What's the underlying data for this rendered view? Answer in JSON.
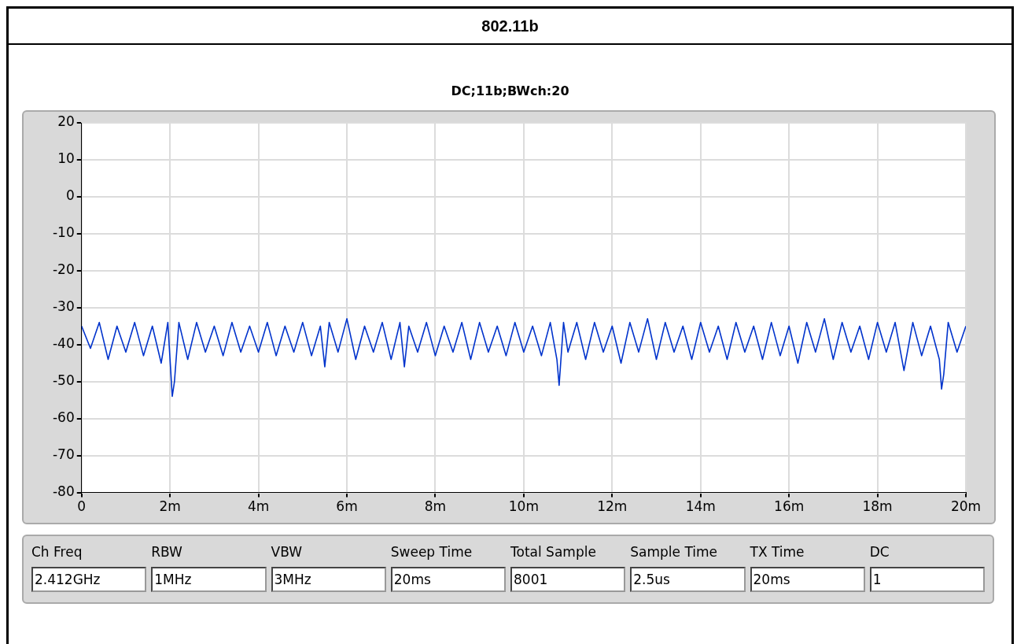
{
  "chart_data": {
    "type": "line",
    "title": "802.11b",
    "subtitle": "DC;11b;BWch:20",
    "x": [
      0,
      0.2,
      0.4,
      0.6,
      0.8,
      1,
      1.2,
      1.4,
      1.6,
      1.8,
      1.95,
      2.05,
      2.1,
      2.2,
      2.4,
      2.6,
      2.8,
      3,
      3.2,
      3.4,
      3.6,
      3.8,
      4,
      4.2,
      4.4,
      4.6,
      4.8,
      5,
      5.2,
      5.4,
      5.5,
      5.6,
      5.8,
      6,
      6.2,
      6.4,
      6.6,
      6.8,
      7,
      7.2,
      7.3,
      7.4,
      7.6,
      7.8,
      8,
      8.2,
      8.4,
      8.6,
      8.8,
      9,
      9.2,
      9.4,
      9.6,
      9.8,
      10,
      10.2,
      10.4,
      10.6,
      10.75,
      10.8,
      10.9,
      11,
      11.2,
      11.4,
      11.6,
      11.8,
      12,
      12.2,
      12.4,
      12.6,
      12.8,
      13,
      13.2,
      13.4,
      13.6,
      13.8,
      14,
      14.2,
      14.4,
      14.6,
      14.8,
      15,
      15.2,
      15.4,
      15.6,
      15.8,
      16,
      16.2,
      16.4,
      16.6,
      16.8,
      17,
      17.2,
      17.4,
      17.6,
      17.8,
      18,
      18.2,
      18.4,
      18.6,
      18.8,
      19,
      19.2,
      19.4,
      19.45,
      19.5,
      19.6,
      19.8,
      20
    ],
    "series": [
      {
        "color": "#0033cc",
        "values": [
          -35,
          -41,
          -34,
          -44,
          -35,
          -42,
          -34,
          -43,
          -35,
          -45,
          -34,
          -54,
          -50,
          -34,
          -44,
          -34,
          -42,
          -35,
          -43,
          -34,
          -42,
          -35,
          -42,
          -34,
          -43,
          -35,
          -42,
          -34,
          -43,
          -35,
          -46,
          -34,
          -42,
          -33,
          -44,
          -35,
          -42,
          -34,
          -44,
          -34,
          -46,
          -35,
          -42,
          -34,
          -43,
          -35,
          -42,
          -34,
          -44,
          -34,
          -42,
          -35,
          -43,
          -34,
          -42,
          -35,
          -43,
          -34,
          -44,
          -51,
          -34,
          -42,
          -34,
          -44,
          -34,
          -42,
          -35,
          -45,
          -34,
          -42,
          -33,
          -44,
          -34,
          -42,
          -35,
          -44,
          -34,
          -42,
          -35,
          -44,
          -34,
          -42,
          -35,
          -44,
          -34,
          -43,
          -35,
          -45,
          -34,
          -42,
          -33,
          -44,
          -34,
          -42,
          -35,
          -44,
          -34,
          -42,
          -34,
          -47,
          -34,
          -43,
          -35,
          -44,
          -52,
          -48,
          -34,
          -42,
          -35
        ]
      }
    ],
    "xlim": [
      0,
      20
    ],
    "xticks": [
      0,
      {
        "value": 2,
        "label": "2m"
      },
      {
        "value": 4,
        "label": "4m"
      },
      {
        "value": 6,
        "label": "6m"
      },
      {
        "value": 8,
        "label": "8m"
      },
      {
        "value": 10,
        "label": "10m"
      },
      {
        "value": 12,
        "label": "12m"
      },
      {
        "value": 14,
        "label": "14m"
      },
      {
        "value": 16,
        "label": "16m"
      },
      {
        "value": 18,
        "label": "18m"
      },
      {
        "value": 20,
        "label": "20m"
      }
    ],
    "ylim": [
      -80,
      20
    ],
    "yticks": [
      -80,
      -70,
      -60,
      -50,
      -40,
      -30,
      -20,
      -10,
      0,
      10,
      20
    ],
    "grid": true,
    "legend": false,
    "marker": "none",
    "line_style": "solid",
    "annotations": [
      "Ch Freq",
      "2.412GHz",
      "RBW",
      "1MHz",
      "VBW",
      "3MHz",
      "Sweep Time",
      "20ms",
      "Total Sample",
      "8001",
      "Sample Time",
      "2.5us",
      "TX Time",
      "20ms",
      "DC",
      "1"
    ]
  }
}
